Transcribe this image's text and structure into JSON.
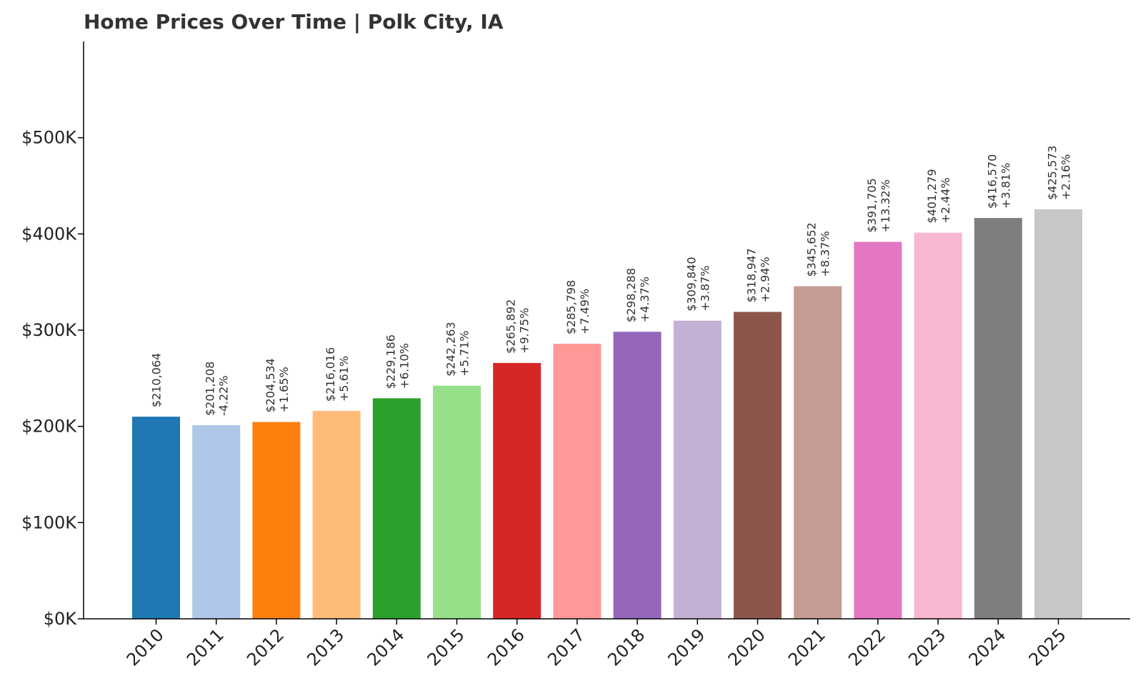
{
  "chart_data": {
    "type": "bar",
    "title": "Home Prices Over Time | Polk City, IA",
    "xlabel": "",
    "ylabel": "",
    "ylim": [
      0,
      600000
    ],
    "yticks": [
      {
        "value": 0,
        "label": "$0K"
      },
      {
        "value": 100000,
        "label": "$100K"
      },
      {
        "value": 200000,
        "label": "$200K"
      },
      {
        "value": 300000,
        "label": "$300K"
      },
      {
        "value": 400000,
        "label": "$400K"
      },
      {
        "value": 500000,
        "label": "$500K"
      }
    ],
    "grid": false,
    "legend": "none",
    "categories": [
      "2010",
      "2011",
      "2012",
      "2013",
      "2014",
      "2015",
      "2016",
      "2017",
      "2018",
      "2019",
      "2020",
      "2021",
      "2022",
      "2023",
      "2024",
      "2025"
    ],
    "values": [
      210064,
      201208,
      204534,
      216016,
      229186,
      242263,
      265892,
      285798,
      298288,
      309840,
      318947,
      345652,
      391705,
      401279,
      416570,
      425573
    ],
    "value_labels": [
      "$210,064",
      "$201,208",
      "$204,534",
      "$216,016",
      "$229,186",
      "$242,263",
      "$265,892",
      "$285,798",
      "$298,288",
      "$309,840",
      "$318,947",
      "$345,652",
      "$391,705",
      "$401,279",
      "$416,570",
      "$425,573"
    ],
    "change_labels": [
      "",
      "-4.22%",
      "+1.65%",
      "+5.61%",
      "+6.10%",
      "+5.71%",
      "+9.75%",
      "+7.49%",
      "+4.37%",
      "+3.87%",
      "+2.94%",
      "+8.37%",
      "+13.32%",
      "+2.44%",
      "+3.81%",
      "+2.16%"
    ],
    "colors": [
      "#1f77b4",
      "#aec7e8",
      "#ff7f0e",
      "#ffbb78",
      "#2ca02c",
      "#98df8a",
      "#d62728",
      "#ff9896",
      "#9467bd",
      "#c5b0d5",
      "#8c564b",
      "#c49c94",
      "#e377c2",
      "#f7b6d2",
      "#7f7f7f",
      "#c7c7c7"
    ]
  }
}
